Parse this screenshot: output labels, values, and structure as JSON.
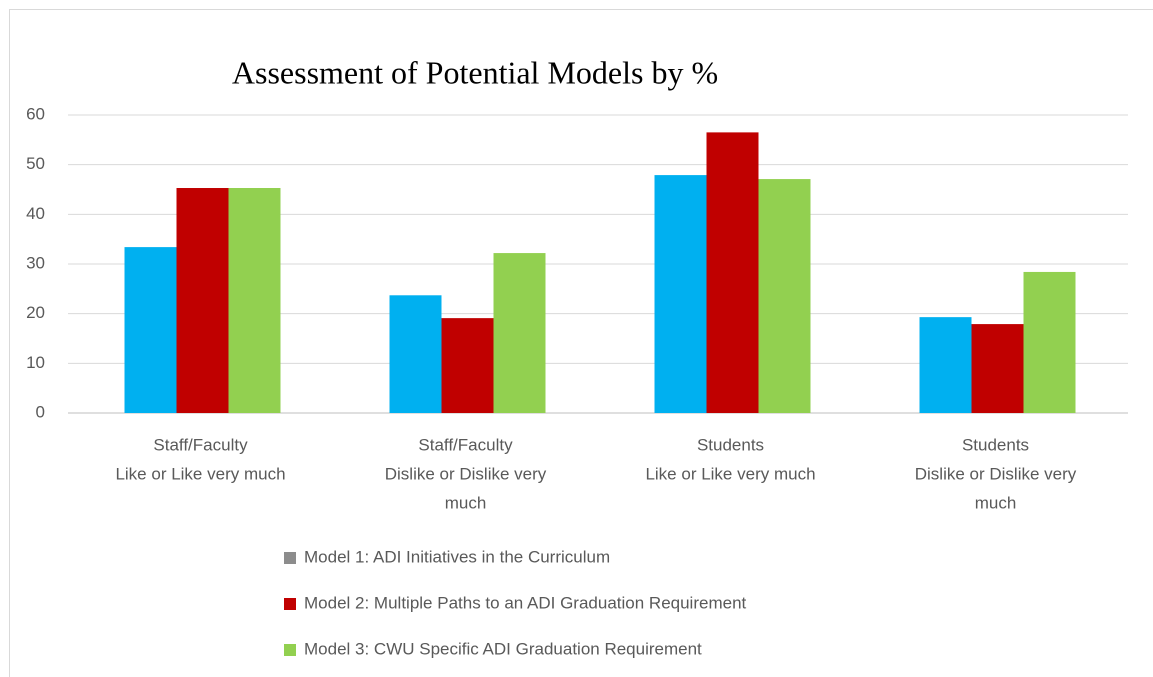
{
  "chart_data": {
    "type": "bar",
    "title": "Assessment of Potential Models by %",
    "categories": [
      [
        "Staff/Faculty",
        "Like or Like very much"
      ],
      [
        "Staff/Faculty",
        "Dislike or Dislike very",
        "much"
      ],
      [
        "Students",
        "Like or Like very much"
      ],
      [
        "Students",
        "Dislike or Dislike very",
        "much"
      ]
    ],
    "series": [
      {
        "name": "Model 1: ADI Initiatives in the Curriculum",
        "color": "#00b0f0",
        "legend_color": "#8c8c8c",
        "values": [
          33.4,
          23.7,
          47.9,
          19.3
        ]
      },
      {
        "name": "Model 2: Multiple Paths to  an ADI Graduation Requirement",
        "color": "#c00000",
        "legend_color": "#c00000",
        "values": [
          45.3,
          19.1,
          56.5,
          17.9
        ]
      },
      {
        "name": "Model 3: CWU Specific ADI Graduation Requirement",
        "color": "#92d050",
        "legend_color": "#92d050",
        "values": [
          45.3,
          32.2,
          47.1,
          28.4
        ]
      }
    ],
    "ylim": [
      0,
      60
    ],
    "yticks": [
      0,
      10,
      20,
      30,
      40,
      50,
      60
    ],
    "grid": true,
    "legend": "bottom"
  }
}
